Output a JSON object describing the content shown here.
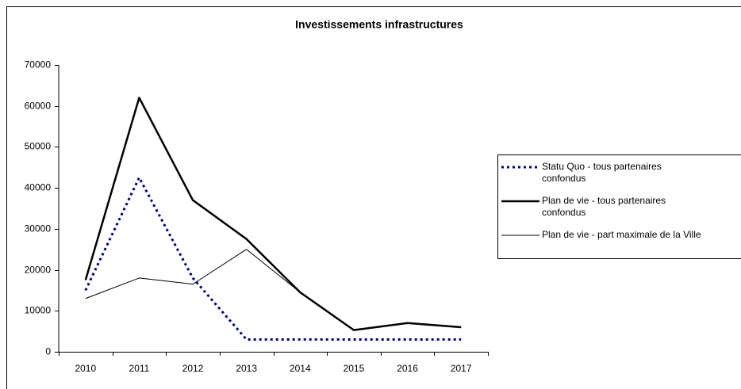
{
  "chart_data": {
    "type": "line",
    "title": "Investissements infrastructures",
    "categories": [
      "2010",
      "2011",
      "2012",
      "2013",
      "2014",
      "2015",
      "2016",
      "2017"
    ],
    "series": [
      {
        "name": "Statu Quo - tous partenaires confondus",
        "color": "#000080",
        "style": "dotted",
        "values": [
          15000,
          42500,
          18000,
          3000,
          3000,
          3000,
          3000,
          3000
        ]
      },
      {
        "name": "Plan de vie - tous partenaires confondus",
        "color": "#000000",
        "style": "thick",
        "values": [
          17500,
          62000,
          37000,
          27500,
          14500,
          5300,
          7000,
          6000
        ]
      },
      {
        "name": "Plan de vie - part maximale de la Ville",
        "color": "#000000",
        "style": "thin",
        "values": [
          13000,
          18000,
          16500,
          25000,
          14500,
          5300,
          7000,
          6000
        ]
      }
    ],
    "ylim": [
      0,
      70000
    ],
    "yticks": [
      0,
      10000,
      20000,
      30000,
      40000,
      50000,
      60000,
      70000
    ],
    "legend": "right"
  }
}
